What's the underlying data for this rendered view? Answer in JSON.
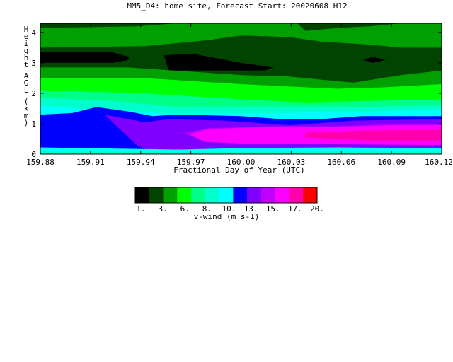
{
  "chart_data": {
    "type": "heatmap",
    "title": "MM5_D4: home site,  Forecast Start: 20020608 H12",
    "xlabel": "Fractional Day of Year (UTC)",
    "ylabel": "Height AGL (km)",
    "xlim": [
      159.875,
      160.125
    ],
    "ylim": [
      0,
      4.3
    ],
    "x_ticks": [
      "159.88",
      "159.91",
      "159.94",
      "159.97",
      "160.00",
      "160.03",
      "160.06",
      "160.09",
      "160.12"
    ],
    "y_ticks": [
      "0",
      "1",
      "2",
      "3",
      "4"
    ],
    "colorbar": {
      "label": "v-wind (m s-1)",
      "tick_labels": [
        "1.",
        "3.",
        "6.",
        "8.",
        "10.",
        "13.",
        "15.",
        "17.",
        "20."
      ],
      "colors": [
        "#000000",
        "#004400",
        "#00a000",
        "#00ff00",
        "#00ff88",
        "#00ffcc",
        "#00ffff",
        "#0000ff",
        "#8000ff",
        "#c000ff",
        "#ff00ff",
        "#ff00aa",
        "#ff0000"
      ]
    },
    "field_bands": [
      {
        "level": 2,
        "color": "#004400",
        "top": [
          [
            159.875,
            4.3
          ],
          [
            160.125,
            4.3
          ]
        ],
        "bottom": [
          [
            159.875,
            0
          ],
          [
            160.125,
            0
          ]
        ]
      },
      {
        "level": 3,
        "color": "#00a000",
        "top": [
          [
            159.875,
            4.15
          ],
          [
            159.935,
            4.2
          ],
          [
            159.96,
            4.3
          ],
          [
            160.035,
            4.3
          ],
          [
            160.04,
            4.05
          ],
          [
            160.06,
            4.15
          ],
          [
            160.08,
            4.2
          ],
          [
            160.1,
            4.3
          ],
          [
            160.125,
            4.3
          ]
        ],
        "bottom": [
          [
            159.875,
            3.5
          ],
          [
            159.94,
            3.55
          ],
          [
            159.98,
            3.75
          ],
          [
            160.0,
            3.9
          ],
          [
            160.03,
            3.85
          ],
          [
            160.05,
            3.7
          ],
          [
            160.08,
            3.6
          ],
          [
            160.1,
            3.5
          ],
          [
            160.125,
            3.5
          ]
        ]
      },
      {
        "level": 1,
        "color": "#000000",
        "top": [
          [
            159.875,
            3.35
          ],
          [
            159.92,
            3.35
          ],
          [
            159.93,
            3.2
          ],
          [
            159.93,
            3.1
          ],
          [
            159.92,
            3.0
          ],
          [
            159.875,
            3.0
          ]
        ],
        "bottom": [
          [
            159.875,
            3.0
          ],
          [
            159.875,
            3.0
          ]
        ]
      },
      {
        "level": 1,
        "color": "#000000",
        "top": [
          [
            159.952,
            3.25
          ],
          [
            159.97,
            3.3
          ],
          [
            160.0,
            3.0
          ],
          [
            160.02,
            2.85
          ],
          [
            160.015,
            2.75
          ],
          [
            159.955,
            2.75
          ]
        ],
        "bottom": [
          [
            159.955,
            2.75
          ],
          [
            159.955,
            2.75
          ]
        ]
      },
      {
        "level": 1,
        "color": "#000000",
        "top": [
          [
            160.076,
            3.1
          ],
          [
            160.082,
            3.2
          ],
          [
            160.09,
            3.1
          ],
          [
            160.082,
            3.0
          ]
        ],
        "bottom": [
          [
            160.076,
            3.1
          ],
          [
            160.076,
            3.1
          ]
        ]
      },
      {
        "level": 3,
        "color": "#00a000",
        "top": [
          [
            159.875,
            2.85
          ],
          [
            159.93,
            2.85
          ],
          [
            160.0,
            2.6
          ],
          [
            160.03,
            2.55
          ],
          [
            160.05,
            2.45
          ],
          [
            160.07,
            2.35
          ],
          [
            160.1,
            2.6
          ],
          [
            160.125,
            2.75
          ]
        ],
        "bottom": [
          [
            159.875,
            0
          ],
          [
            160.125,
            0
          ]
        ]
      },
      {
        "level": 4,
        "color": "#00ff00",
        "top": [
          [
            159.875,
            2.5
          ],
          [
            159.94,
            2.5
          ],
          [
            160.0,
            2.3
          ],
          [
            160.02,
            2.25
          ],
          [
            160.04,
            2.2
          ],
          [
            160.06,
            2.15
          ],
          [
            160.09,
            2.2
          ],
          [
            160.125,
            2.3
          ]
        ],
        "bottom": [
          [
            159.875,
            0
          ],
          [
            160.125,
            0
          ]
        ]
      },
      {
        "level": 5,
        "color": "#00ff88",
        "top": [
          [
            159.875,
            2.1
          ],
          [
            159.94,
            2.0
          ],
          [
            160.0,
            1.8
          ],
          [
            160.04,
            1.7
          ],
          [
            160.08,
            1.75
          ],
          [
            160.125,
            1.8
          ]
        ],
        "bottom": [
          [
            159.875,
            0
          ],
          [
            160.125,
            0
          ]
        ]
      },
      {
        "level": 6,
        "color": "#00ffcc",
        "top": [
          [
            159.875,
            1.85
          ],
          [
            159.92,
            1.75
          ],
          [
            159.96,
            1.55
          ],
          [
            160.02,
            1.55
          ],
          [
            160.07,
            1.55
          ],
          [
            160.125,
            1.6
          ]
        ],
        "bottom": [
          [
            159.875,
            0
          ],
          [
            160.125,
            0
          ]
        ]
      },
      {
        "level": 7,
        "color": "#00ffff",
        "top": [
          [
            159.875,
            1.6
          ],
          [
            159.9,
            1.5
          ],
          [
            159.92,
            1.45
          ],
          [
            159.95,
            1.35
          ],
          [
            160.02,
            1.35
          ],
          [
            160.07,
            1.4
          ],
          [
            160.125,
            1.45
          ]
        ],
        "bottom": [
          [
            159.875,
            0
          ],
          [
            160.125,
            0
          ]
        ]
      },
      {
        "level": 8,
        "color": "#0000ff",
        "top": [
          [
            159.875,
            1.3
          ],
          [
            159.895,
            1.35
          ],
          [
            159.91,
            1.55
          ],
          [
            159.93,
            1.4
          ],
          [
            159.945,
            1.25
          ],
          [
            159.96,
            1.3
          ],
          [
            160.0,
            1.25
          ],
          [
            160.025,
            1.15
          ],
          [
            160.05,
            1.15
          ],
          [
            160.075,
            1.25
          ],
          [
            160.1,
            1.25
          ],
          [
            160.125,
            1.25
          ]
        ],
        "bottom": [
          [
            159.875,
            0
          ],
          [
            160.125,
            0
          ]
        ]
      },
      {
        "level": 9,
        "color": "#8000ff",
        "top": [
          [
            159.915,
            1.3
          ],
          [
            159.94,
            1.05
          ],
          [
            159.955,
            1.15
          ],
          [
            159.99,
            1.1
          ],
          [
            160.03,
            0.95
          ],
          [
            160.07,
            1.1
          ],
          [
            160.125,
            1.15
          ]
        ],
        "bottom": [
          [
            159.915,
            1.3
          ],
          [
            159.935,
            0.3
          ],
          [
            159.945,
            0.05
          ],
          [
            160.125,
            0.05
          ]
        ]
      },
      {
        "level": 10,
        "color": "#c000ff",
        "top": [
          [
            159.965,
            0.7
          ],
          [
            159.98,
            0.85
          ],
          [
            160.02,
            0.92
          ],
          [
            160.06,
            0.92
          ],
          [
            160.1,
            1.0
          ],
          [
            160.125,
            1.0
          ]
        ],
        "bottom": [
          [
            159.965,
            0.7
          ],
          [
            159.975,
            0.45
          ],
          [
            160.125,
            0.45
          ]
        ]
      },
      {
        "level": 11,
        "color": "#ff00ff",
        "top": [
          [
            159.968,
            0.65
          ],
          [
            159.98,
            0.82
          ],
          [
            160.02,
            0.9
          ],
          [
            160.06,
            0.9
          ],
          [
            160.1,
            0.95
          ],
          [
            160.125,
            0.95
          ]
        ],
        "bottom": [
          [
            159.968,
            0.65
          ],
          [
            159.978,
            0.4
          ],
          [
            160.0,
            0.35
          ],
          [
            160.125,
            0.3
          ]
        ]
      },
      {
        "level": 12,
        "color": "#ff00aa",
        "top": [
          [
            160.04,
            0.7
          ],
          [
            160.08,
            0.78
          ],
          [
            160.125,
            0.8
          ]
        ],
        "bottom": [
          [
            160.04,
            0.55
          ],
          [
            160.08,
            0.45
          ],
          [
            160.125,
            0.45
          ]
        ]
      },
      {
        "level": 7,
        "color": "#00ffff",
        "top": [
          [
            159.875,
            0.22
          ],
          [
            159.96,
            0.15
          ],
          [
            160.0,
            0.2
          ],
          [
            160.06,
            0.22
          ],
          [
            160.125,
            0.2
          ]
        ],
        "bottom": [
          [
            159.875,
            0
          ],
          [
            160.125,
            0
          ]
        ]
      },
      {
        "level": 6,
        "color": "#00ffcc",
        "top": [
          [
            159.875,
            0.12
          ],
          [
            159.96,
            0.06
          ],
          [
            160.06,
            0.1
          ],
          [
            160.125,
            0.08
          ]
        ],
        "bottom": [
          [
            159.875,
            0
          ],
          [
            160.125,
            0
          ]
        ]
      }
    ]
  }
}
